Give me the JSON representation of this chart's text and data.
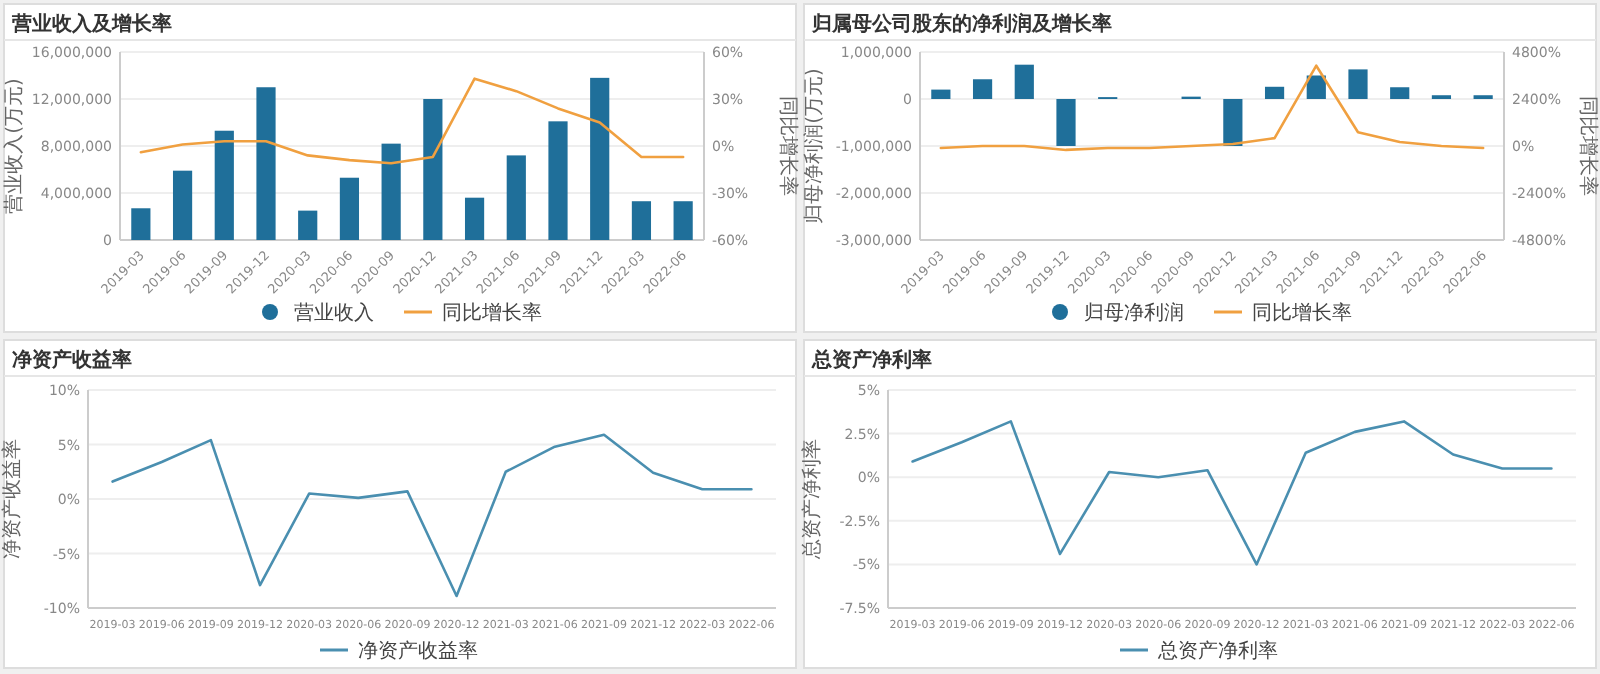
{
  "chart_data": [
    {
      "type": "bar",
      "title": "营业收入及增长率",
      "ylabel": "营业收入(万元)",
      "y2label": "同比增长率",
      "categories": [
        "2019-03",
        "2019-06",
        "2019-09",
        "2019-12",
        "2020-03",
        "2020-06",
        "2020-09",
        "2020-12",
        "2021-03",
        "2021-06",
        "2021-09",
        "2021-12",
        "2022-03",
        "2022-06"
      ],
      "series": [
        {
          "name": "营业收入",
          "color": "#1f6f9a",
          "values": [
            2700000,
            5900000,
            9300000,
            13000000,
            2500000,
            5300000,
            8200000,
            12000000,
            3600000,
            7200000,
            10100000,
            13800000,
            3300000,
            3300000
          ]
        },
        {
          "name": "同比增长率",
          "type": "line",
          "axis": "y2",
          "color": "#f0a040",
          "values": [
            -4,
            1,
            3,
            3,
            -6,
            -9,
            -11,
            -7,
            43,
            35,
            24,
            15,
            -7,
            -7
          ]
        }
      ],
      "ylim": [
        0,
        16000000
      ],
      "yticks": [
        0,
        {
          "value": 4000000,
          "label": "4,000,000"
        },
        {
          "value": 8000000,
          "label": "8,000,000"
        },
        {
          "value": 12000000,
          "label": "12,000,000"
        },
        {
          "value": 16000000,
          "label": "16,000,000"
        }
      ],
      "y2lim": [
        -60,
        60
      ],
      "y2ticks": [
        {
          "value": -60,
          "label": "-60%"
        },
        {
          "value": -30,
          "label": "-30%"
        },
        {
          "value": 0,
          "label": "0%"
        },
        {
          "value": 30,
          "label": "30%"
        },
        {
          "value": 60,
          "label": "60%"
        }
      ],
      "grid": "y",
      "legend": "bottom"
    },
    {
      "type": "bar",
      "title": "归属母公司股东的净利润及增长率",
      "ylabel": "归母净利润(万元)",
      "y2label": "同比增长率",
      "categories": [
        "2019-03",
        "2019-06",
        "2019-09",
        "2019-12",
        "2020-03",
        "2020-06",
        "2020-09",
        "2020-12",
        "2021-03",
        "2021-06",
        "2021-09",
        "2021-12",
        "2022-03",
        "2022-06"
      ],
      "series": [
        {
          "name": "归母净利润",
          "color": "#1f6f9a",
          "values": [
            200000,
            420000,
            730000,
            -1000000,
            40000,
            0,
            50000,
            -1000000,
            260000,
            500000,
            630000,
            250000,
            80000,
            80000
          ]
        },
        {
          "name": "同比增长率",
          "type": "line",
          "axis": "y2",
          "color": "#f0a040",
          "values": [
            -100,
            0,
            0,
            -200,
            -100,
            -100,
            0,
            100,
            400,
            4100,
            700,
            200,
            0,
            -100
          ]
        }
      ],
      "ylim": [
        -3000000,
        1000000
      ],
      "yticks": [
        {
          "value": -3000000,
          "label": "-3,000,000"
        },
        {
          "value": -2000000,
          "label": "-2,000,000"
        },
        {
          "value": -1000000,
          "label": "-1,000,000"
        },
        0,
        {
          "value": 1000000,
          "label": "1,000,000"
        }
      ],
      "y2lim": [
        -4800,
        4800
      ],
      "y2ticks": [
        {
          "value": -4800,
          "label": "-4800%"
        },
        {
          "value": -2400,
          "label": "-2400%"
        },
        {
          "value": 0,
          "label": "0%"
        },
        {
          "value": 2400,
          "label": "2400%"
        },
        {
          "value": 4800,
          "label": "4800%"
        }
      ],
      "grid": "y",
      "legend": "bottom"
    },
    {
      "type": "line",
      "title": "净资产收益率",
      "ylabel": "净资产收益率",
      "categories": [
        "2019-03",
        "2019-06",
        "2019-09",
        "2019-12",
        "2020-03",
        "2020-06",
        "2020-09",
        "2020-12",
        "2021-03",
        "2021-06",
        "2021-09",
        "2021-12",
        "2022-03",
        "2022-06"
      ],
      "series": [
        {
          "name": "净资产收益率",
          "color": "#4a8fb0",
          "values": [
            1.6,
            3.4,
            5.4,
            -7.9,
            0.5,
            0.1,
            0.7,
            -8.9,
            2.5,
            4.8,
            5.9,
            2.4,
            0.9,
            0.9
          ]
        }
      ],
      "ylim": [
        -10,
        10
      ],
      "yticks": [
        {
          "value": -10,
          "label": "-10%"
        },
        {
          "value": -5,
          "label": "-5%"
        },
        {
          "value": 0,
          "label": "0%"
        },
        {
          "value": 5,
          "label": "5%"
        },
        {
          "value": 10,
          "label": "10%"
        }
      ],
      "grid": "y",
      "legend": "bottom"
    },
    {
      "type": "line",
      "title": "总资产净利率",
      "ylabel": "总资产净利率",
      "categories": [
        "2019-03",
        "2019-06",
        "2019-09",
        "2019-12",
        "2020-03",
        "2020-06",
        "2020-09",
        "2020-12",
        "2021-03",
        "2021-06",
        "2021-09",
        "2021-12",
        "2022-03",
        "2022-06"
      ],
      "series": [
        {
          "name": "总资产净利率",
          "color": "#4a8fb0",
          "values": [
            0.9,
            2,
            3.2,
            -4.4,
            0.3,
            0,
            0.4,
            -5,
            1.4,
            2.6,
            3.2,
            1.3,
            0.5,
            0.5
          ]
        }
      ],
      "ylim": [
        -7.5,
        5
      ],
      "yticks": [
        {
          "value": -7.5,
          "label": "-7.5%"
        },
        {
          "value": -5,
          "label": "-5%"
        },
        {
          "value": -2.5,
          "label": "-2.5%"
        },
        {
          "value": 0,
          "label": "0%"
        },
        {
          "value": 2.5,
          "label": "2.5%"
        },
        {
          "value": 5,
          "label": "5%"
        }
      ],
      "grid": "y",
      "legend": "bottom"
    }
  ]
}
